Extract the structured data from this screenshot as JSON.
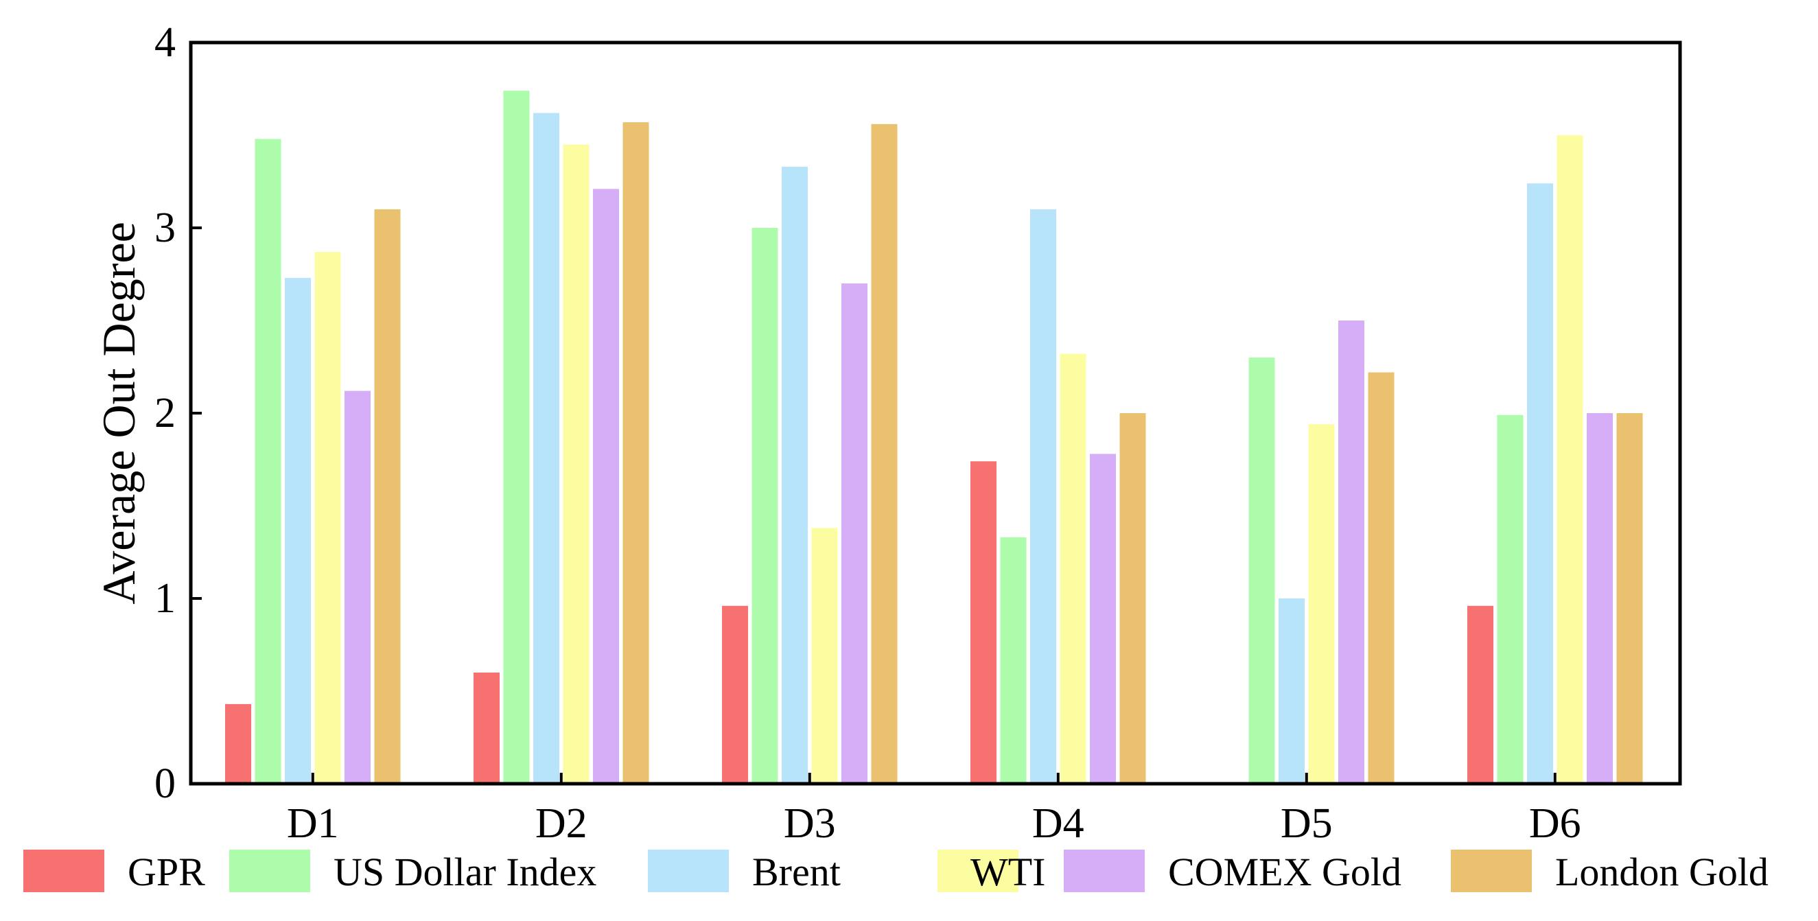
{
  "chart_data": {
    "type": "bar",
    "title": "",
    "xlabel": "",
    "ylabel": "Average Out Degree",
    "ylim": [
      0,
      4
    ],
    "yticks": [
      "0",
      "1",
      "2",
      "3",
      "4"
    ],
    "categories": [
      "D1",
      "D2",
      "D3",
      "D4",
      "D5",
      "D6"
    ],
    "legend_position": "bottom",
    "grid": false,
    "series": [
      {
        "name": "GPR",
        "color": "#F87171",
        "values": [
          0.43,
          0.6,
          0.96,
          1.74,
          0,
          0.96
        ]
      },
      {
        "name": "US Dollar Index",
        "color": "#ACFCAC",
        "values": [
          3.48,
          3.74,
          3.0,
          1.33,
          2.3,
          1.99
        ]
      },
      {
        "name": "Brent",
        "color": "#B7E3FB",
        "values": [
          2.73,
          3.62,
          3.33,
          3.1,
          1.0,
          3.24
        ]
      },
      {
        "name": "WTI",
        "color": "#FCFCA0",
        "values": [
          2.87,
          3.45,
          1.38,
          2.32,
          1.94,
          3.5
        ]
      },
      {
        "name": "COMEX Gold",
        "color": "#D6AEF8",
        "values": [
          2.12,
          3.21,
          2.7,
          1.78,
          2.5,
          2.0
        ]
      },
      {
        "name": "London Gold",
        "color": "#EAC26F",
        "values": [
          3.1,
          3.57,
          3.56,
          2.0,
          2.22,
          2.0
        ]
      }
    ]
  }
}
